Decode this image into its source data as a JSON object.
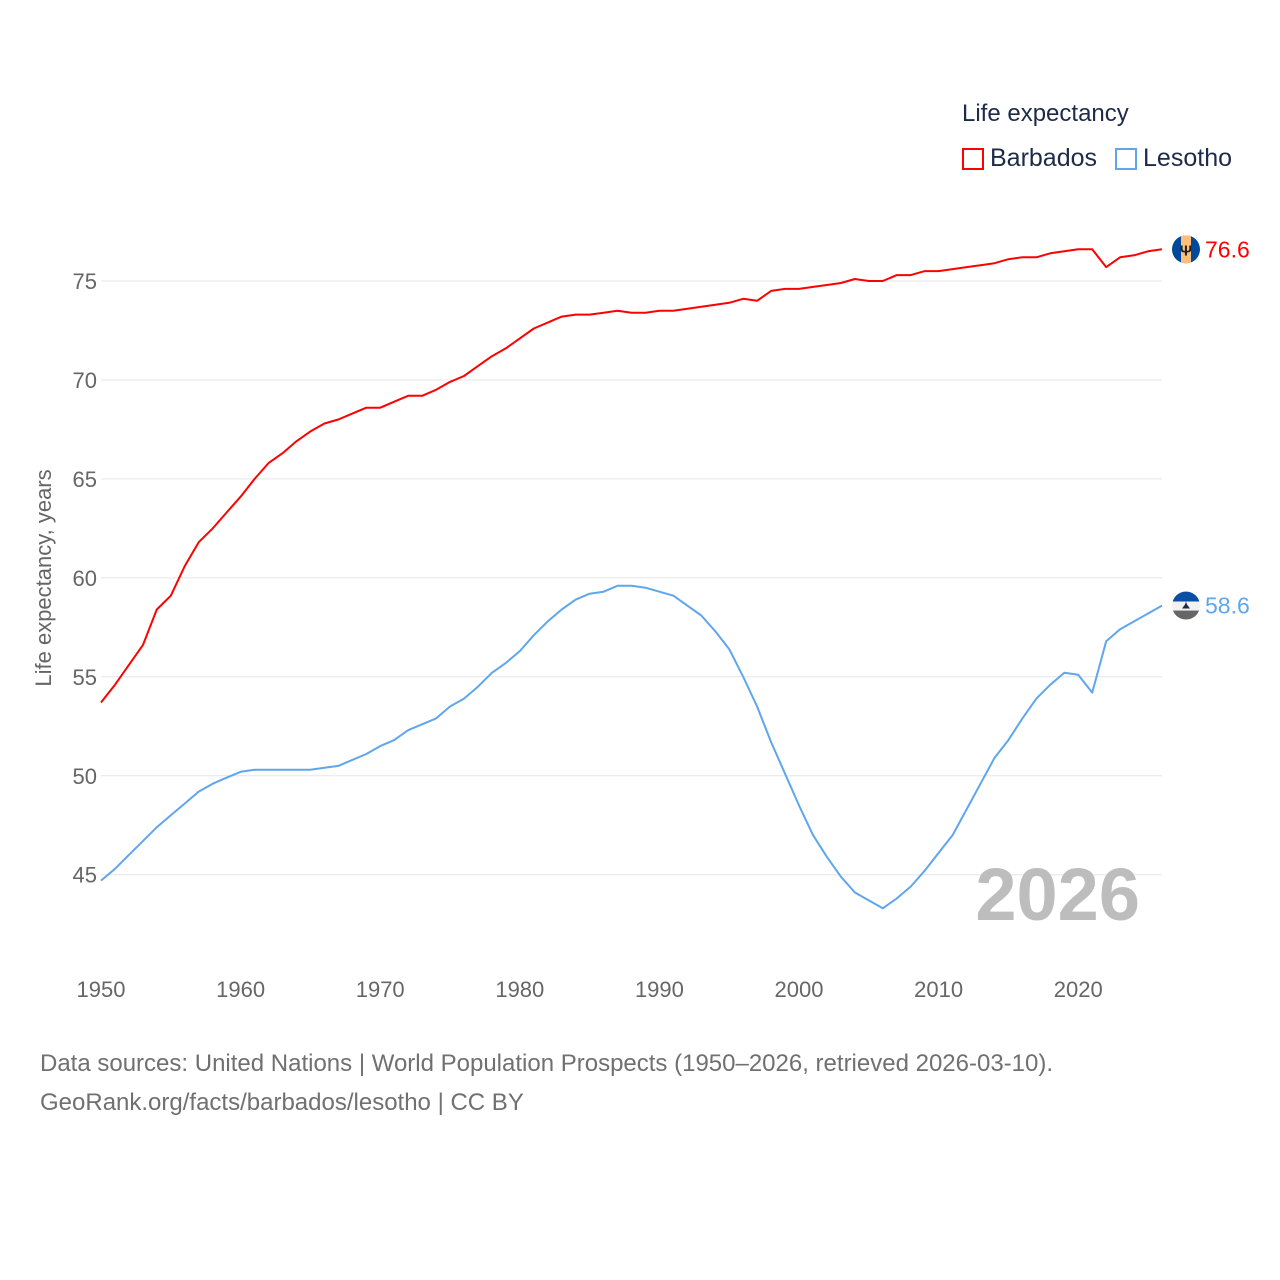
{
  "chart_data": {
    "type": "line",
    "title": "Life expectancy",
    "ylabel": "Life expectancy, years",
    "xlabel": "",
    "xlim": [
      1950,
      2026
    ],
    "ylim": [
      41,
      78
    ],
    "xticks": [
      1950,
      1960,
      1970,
      1980,
      1990,
      2000,
      2010,
      2020
    ],
    "yticks": [
      45,
      50,
      55,
      60,
      65,
      70,
      75
    ],
    "grid": true,
    "legend_placement": "top-right",
    "year_watermark": "2026",
    "x": [
      1950,
      1951,
      1952,
      1953,
      1954,
      1955,
      1956,
      1957,
      1958,
      1959,
      1960,
      1961,
      1962,
      1963,
      1964,
      1965,
      1966,
      1967,
      1968,
      1969,
      1970,
      1971,
      1972,
      1973,
      1974,
      1975,
      1976,
      1977,
      1978,
      1979,
      1980,
      1981,
      1982,
      1983,
      1984,
      1985,
      1986,
      1987,
      1988,
      1989,
      1990,
      1991,
      1992,
      1993,
      1994,
      1995,
      1996,
      1997,
      1998,
      1999,
      2000,
      2001,
      2002,
      2003,
      2004,
      2005,
      2006,
      2007,
      2008,
      2009,
      2010,
      2011,
      2012,
      2013,
      2014,
      2015,
      2016,
      2017,
      2018,
      2019,
      2020,
      2021,
      2022,
      2023,
      2024,
      2025,
      2026
    ],
    "series": [
      {
        "name": "Barbados",
        "color": "#ff0000",
        "end_label": "76.6",
        "values": [
          53.7,
          54.6,
          55.6,
          56.6,
          58.4,
          59.1,
          60.6,
          61.8,
          62.5,
          63.3,
          64.1,
          65.0,
          65.8,
          66.3,
          66.9,
          67.4,
          67.8,
          68.0,
          68.3,
          68.6,
          68.6,
          68.9,
          69.2,
          69.2,
          69.5,
          69.9,
          70.2,
          70.7,
          71.2,
          71.6,
          72.1,
          72.6,
          72.9,
          73.2,
          73.3,
          73.3,
          73.4,
          73.5,
          73.4,
          73.4,
          73.5,
          73.5,
          73.6,
          73.7,
          73.8,
          73.9,
          74.1,
          74.0,
          74.5,
          74.6,
          74.6,
          74.7,
          74.8,
          74.9,
          75.1,
          75.0,
          75.0,
          75.3,
          75.3,
          75.5,
          75.5,
          75.6,
          75.7,
          75.8,
          75.9,
          76.1,
          76.2,
          76.2,
          76.4,
          76.5,
          76.6,
          76.6,
          75.7,
          76.2,
          76.3,
          76.5,
          76.6
        ]
      },
      {
        "name": "Lesotho",
        "color": "#5fa6ec",
        "end_label": "58.6",
        "values": [
          44.7,
          45.3,
          46.0,
          46.7,
          47.4,
          48.0,
          48.6,
          49.2,
          49.6,
          49.9,
          50.2,
          50.3,
          50.3,
          50.3,
          50.3,
          50.3,
          50.4,
          50.5,
          50.8,
          51.1,
          51.5,
          51.8,
          52.3,
          52.6,
          52.9,
          53.5,
          53.9,
          54.5,
          55.2,
          55.7,
          56.3,
          57.1,
          57.8,
          58.4,
          58.9,
          59.2,
          59.3,
          59.6,
          59.6,
          59.5,
          59.3,
          59.1,
          58.6,
          58.1,
          57.3,
          56.4,
          55.0,
          53.5,
          51.7,
          50.1,
          48.5,
          47.0,
          45.9,
          44.9,
          44.1,
          43.7,
          43.3,
          43.8,
          44.4,
          45.2,
          46.1,
          47.0,
          48.3,
          49.6,
          50.9,
          51.8,
          52.9,
          53.9,
          54.6,
          55.2,
          55.1,
          54.2,
          56.8,
          57.4,
          57.8,
          58.2,
          58.6
        ]
      }
    ]
  },
  "source": {
    "line1": "Data sources: United Nations | World Population Prospects (1950–2026, retrieved 2026-03-10).",
    "line2": "GeoRank.org/facts/barbados/lesotho | CC BY"
  }
}
